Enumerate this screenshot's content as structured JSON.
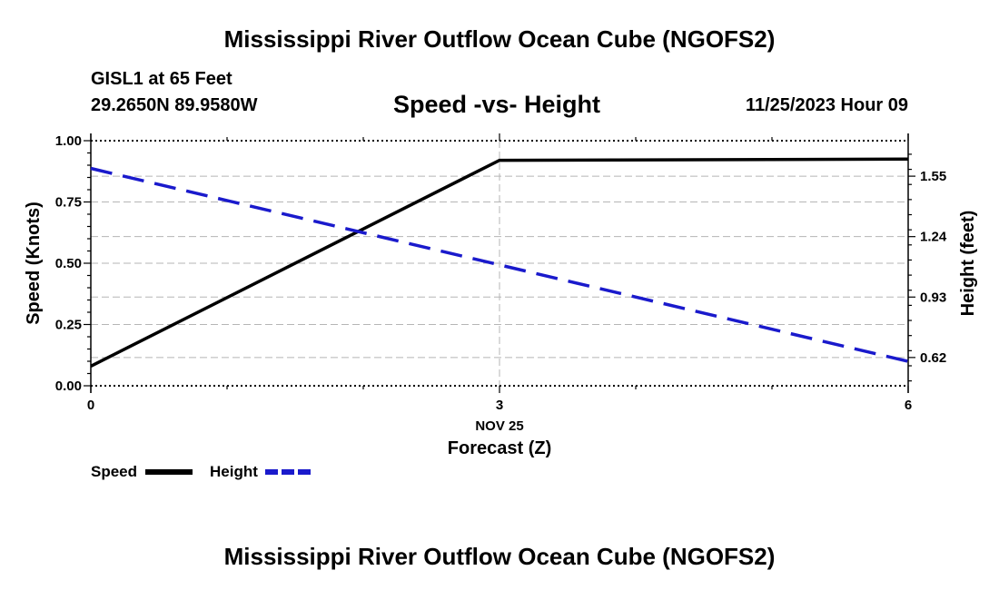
{
  "header": {
    "title": "Mississippi River Outflow Ocean Cube (NGOFS2)",
    "station_name": "GISL1 at 65 Feet",
    "station_coords": "29.2650N  89.9580W",
    "subtitle": "Speed -vs- Height",
    "datetime": "11/25/2023 Hour 09"
  },
  "footer": {
    "title": "Mississippi River Outflow Ocean Cube (NGOFS2)"
  },
  "chart_data": {
    "type": "line",
    "title": "Speed -vs- Height",
    "xlabel": "Forecast (Z)",
    "x_date_label": "NOV 25",
    "xlim": [
      0,
      6
    ],
    "x_ticks": [
      0,
      3,
      6
    ],
    "x_tick_labels": [
      "0",
      "3",
      "6"
    ],
    "ylabel_left": "Speed (Knots)",
    "ylim_left": [
      0,
      1
    ],
    "y_ticks_left": [
      0,
      0.25,
      0.5,
      0.75,
      1.0
    ],
    "y_tick_labels_left": [
      "0.00",
      "0.25",
      "0.50",
      "0.75",
      "1.00"
    ],
    "ylabel_right": "Height (feet)",
    "ylim_right": [
      0.475,
      1.732
    ],
    "y_ticks_right": [
      0.62,
      0.93,
      1.24,
      1.55
    ],
    "y_tick_labels_right": [
      "0.62",
      "0.93",
      "1.24",
      "1.55"
    ],
    "grid": true,
    "series": [
      {
        "name": "Speed",
        "axis": "left",
        "style": "solid",
        "color": "#000000",
        "x": [
          0,
          3,
          6
        ],
        "values": [
          0.08,
          0.92,
          0.925
        ]
      },
      {
        "name": "Height",
        "axis": "right",
        "style": "dashed",
        "color": "#1a1acc",
        "x": [
          0,
          6
        ],
        "values": [
          1.59,
          0.6
        ]
      }
    ],
    "legend": {
      "position": "bottom-left",
      "labels": [
        "Speed",
        "Height"
      ]
    }
  }
}
